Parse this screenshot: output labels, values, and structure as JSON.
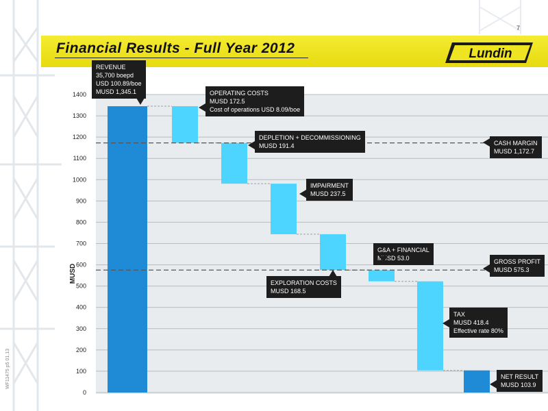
{
  "page_number": "7",
  "title": "Financial Results - Full Year 2012",
  "logo_text": "Lundin",
  "side_code": "WF11475 p5 01.13",
  "colors": {
    "revenue_bar": "#1f8ad6",
    "cost_bar": "#4dd5ff",
    "net_bar": "#1f8ad6",
    "band": "#efe421",
    "callout_bg": "#1d1d1d"
  },
  "chart_data": {
    "type": "bar",
    "subtype": "waterfall",
    "ylabel": "MUSD",
    "ylim": [
      0,
      1400
    ],
    "yticks": [
      0,
      100,
      200,
      300,
      400,
      500,
      600,
      700,
      800,
      900,
      1000,
      1100,
      1200,
      1300,
      1400
    ],
    "grid": true,
    "bars": [
      {
        "id": "revenue",
        "kind": "total",
        "bottom": 0,
        "top": 1345.1,
        "labels": [
          "REVENUE",
          "35,700 boepd",
          "USD 100.89/boe",
          "MUSD 1,345.1"
        ]
      },
      {
        "id": "operating-costs",
        "kind": "decrease",
        "bottom": 1172.6,
        "top": 1345.1,
        "labels": [
          "OPERATING COSTS",
          "MUSD 172.5",
          "Cost of operations USD 8.09/boe"
        ]
      },
      {
        "id": "depletion",
        "kind": "decrease",
        "bottom": 981.2,
        "top": 1172.6,
        "labels": [
          "DEPLETION + DECOMMISSIONING",
          "MUSD  191.4"
        ]
      },
      {
        "id": "impairment",
        "kind": "decrease",
        "bottom": 743.7,
        "top": 981.2,
        "labels": [
          "IMPAIRMENT",
          "MUSD  237.5"
        ]
      },
      {
        "id": "exploration-costs",
        "kind": "decrease",
        "bottom": 575.2,
        "top": 743.7,
        "labels": [
          "EXPLORATION COSTS",
          "MUSD 168.5"
        ]
      },
      {
        "id": "ga-financial",
        "kind": "decrease",
        "bottom": 522.3,
        "top": 575.3,
        "labels": [
          "G&A + FINANCIAL",
          "MUSD 53.0"
        ]
      },
      {
        "id": "tax",
        "kind": "decrease",
        "bottom": 103.9,
        "top": 522.3,
        "labels": [
          "TAX",
          "MUSD 418.4",
          "Effective rate 80%"
        ]
      },
      {
        "id": "net-result",
        "kind": "total",
        "bottom": 0,
        "top": 103.9,
        "labels": [
          "NET RESULT",
          "MUSD 103.9"
        ]
      }
    ],
    "reference_lines": [
      {
        "id": "cash-margin",
        "value": 1172.7,
        "labels": [
          "CASH MARGIN",
          "MUSD  1,172.7"
        ]
      },
      {
        "id": "gross-profit",
        "value": 575.3,
        "labels": [
          "GROSS PROFIT",
          "MUSD 575.3"
        ]
      }
    ]
  }
}
